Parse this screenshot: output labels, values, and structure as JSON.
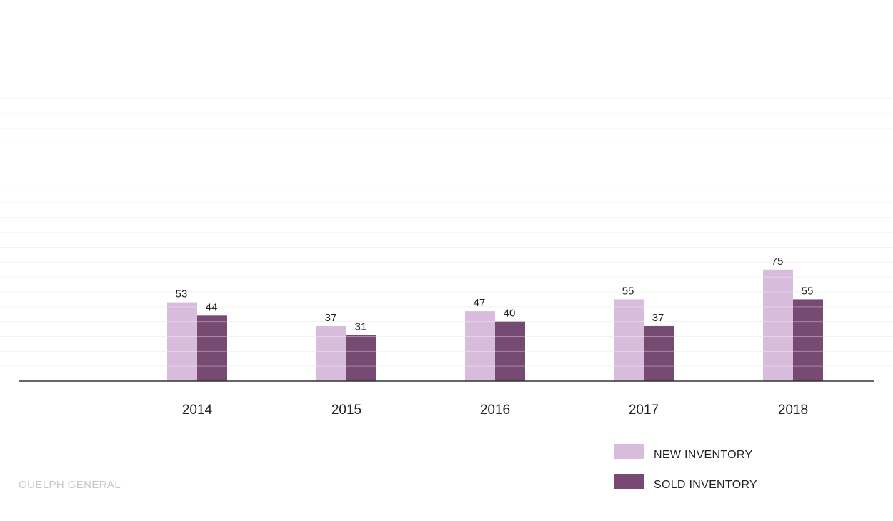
{
  "chart_data": {
    "type": "bar",
    "categories": [
      "2014",
      "2015",
      "2016",
      "2017",
      "2018"
    ],
    "series": [
      {
        "name": "NEW INVENTORY",
        "values": [
          53,
          37,
          47,
          55,
          75
        ],
        "color": "#d8bcdb"
      },
      {
        "name": "SOLD INVENTORY",
        "values": [
          44,
          31,
          40,
          37,
          55
        ],
        "color": "#774a73"
      }
    ],
    "ylim": [
      0,
      200
    ],
    "grid": true,
    "legend_position": "bottom-right"
  },
  "footer": {
    "source": "GUELPH GENERAL"
  },
  "colors": {
    "baseline": "#333333",
    "gridline": "#f3f3f3",
    "footer_text": "#c8c8c8"
  }
}
